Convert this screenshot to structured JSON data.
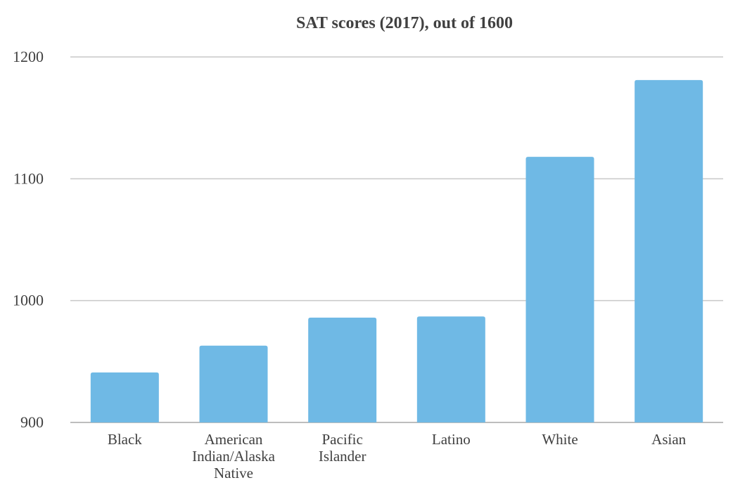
{
  "chart_data": {
    "type": "bar",
    "title": "SAT scores (2017), out of 1600",
    "xlabel": "",
    "ylabel": "",
    "categories": [
      "Black",
      "American Indian/Alaska Native",
      "Pacific Islander",
      "Latino",
      "White",
      "Asian"
    ],
    "category_lines": [
      [
        "Black"
      ],
      [
        "American",
        "Indian/Alaska",
        "Native"
      ],
      [
        "Pacific",
        "Islander"
      ],
      [
        "Latino"
      ],
      [
        "White"
      ],
      [
        "Asian"
      ]
    ],
    "values": [
      941,
      963,
      986,
      987,
      1118,
      1181
    ],
    "ylim": [
      900,
      1200
    ],
    "yticks": [
      900,
      1000,
      1100,
      1200
    ],
    "grid": true,
    "legend": "none",
    "bar_color": "#6fb9e5",
    "grid_color": "#c8c8c8",
    "text_color": "#404040"
  }
}
